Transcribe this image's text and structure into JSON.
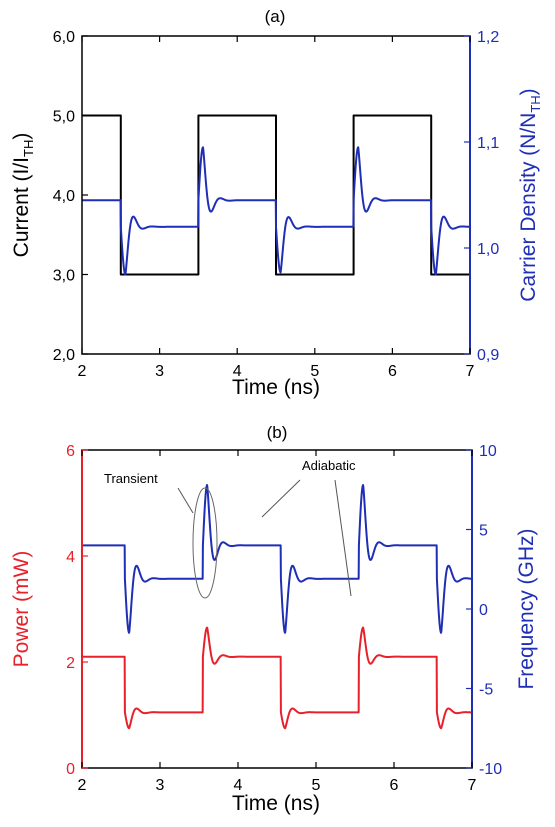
{
  "chart_data": [
    {
      "panel_label": "(a)",
      "type": "line",
      "xlabel": "Time (ns)",
      "xlim": [
        2,
        7
      ],
      "xticks": [
        "2",
        "3",
        "4",
        "5",
        "6",
        "7"
      ],
      "ylabel": "Current (I/I",
      "ylabel_sub": "TH",
      "ylabel_end": ")",
      "ylim": [
        2.0,
        6.0
      ],
      "yticks": [
        "2,0",
        "3,0",
        "4,0",
        "5,0",
        "6,0"
      ],
      "y2label": "Carrier Density (N/N",
      "y2label_sub": "TH",
      "y2label_end": ")",
      "y2lim": [
        0.9,
        1.2
      ],
      "y2ticks": [
        "0,9",
        "1,0",
        "1,1",
        "1,2"
      ],
      "left_axis_color": "#000000",
      "right_axis_color": "#1f2fb5",
      "grid": false,
      "series": [
        {
          "axis": "left",
          "color": "#000000",
          "kind": "square",
          "start": 2.0,
          "end": 7.0,
          "transitions": [
            2.5,
            3.5,
            4.5,
            5.5,
            6.5
          ],
          "levels": [
            5.0,
            3.0,
            5.0,
            3.0,
            5.0,
            3.0
          ]
        },
        {
          "axis": "right",
          "color": "#1f2fb5",
          "kind": "damped",
          "start": 2.0,
          "end": 7.0,
          "transitions": [
            2.5,
            3.5,
            4.5,
            5.5,
            6.5
          ],
          "levels": [
            1.045,
            1.02,
            1.045,
            1.02,
            1.045,
            1.02
          ],
          "peaks": [
            0.975,
            1.095,
            0.977,
            1.095,
            0.975
          ],
          "damping": 14,
          "period": 0.24
        }
      ]
    },
    {
      "panel_label": "(b)",
      "type": "line",
      "xlabel": "Time (ns)",
      "xlim": [
        2,
        7
      ],
      "xticks": [
        "2",
        "3",
        "4",
        "5",
        "6",
        "7"
      ],
      "ylabel": "Power (mW)",
      "ylim": [
        0,
        6
      ],
      "yticks": [
        "0",
        "2",
        "4",
        "6"
      ],
      "y2label": "Frequency (GHz)",
      "y2lim": [
        -10,
        10
      ],
      "y2ticks": [
        "-10",
        "-5",
        "0",
        "5",
        "10"
      ],
      "left_axis_color": "#e8202a",
      "right_axis_color": "#1f2fb5",
      "grid": false,
      "annotations": [
        "Transient",
        "Adiabatic"
      ],
      "series": [
        {
          "axis": "left",
          "color": "#e8202a",
          "kind": "damped",
          "start": 2.0,
          "end": 7.0,
          "transitions": [
            2.55,
            3.55,
            4.55,
            5.55,
            6.55
          ],
          "levels": [
            2.1,
            1.05,
            2.1,
            1.05,
            2.1,
            1.05
          ],
          "peaks": [
            0.75,
            2.65,
            0.75,
            2.65,
            0.75
          ],
          "damping": 14,
          "period": 0.22
        },
        {
          "axis": "right",
          "color": "#1f2fb5",
          "kind": "damped",
          "start": 2.0,
          "end": 7.0,
          "transitions": [
            2.55,
            3.55,
            4.55,
            5.55,
            6.55
          ],
          "levels": [
            4.0,
            1.9,
            4.0,
            1.9,
            4.0,
            1.9
          ],
          "peaks": [
            -1.5,
            7.8,
            -1.5,
            7.8,
            -1.5
          ],
          "damping": 14,
          "period": 0.22
        }
      ]
    }
  ]
}
